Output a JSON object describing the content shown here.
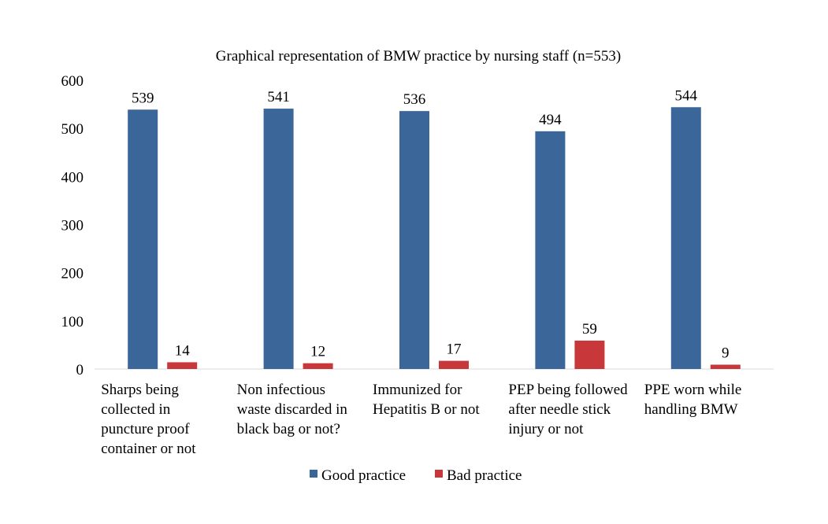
{
  "chart_data": {
    "type": "bar",
    "title": "Graphical representation  of BMW practice by nursing staff (n=553)",
    "categories": [
      [
        "Sharps being",
        "collected in",
        "puncture proof",
        "container or not"
      ],
      [
        "Non infectious",
        "waste discarded in",
        "black bag or not?"
      ],
      [
        "Immunized for",
        "Hepatitis B or not"
      ],
      [
        "PEP being followed",
        "after needle stick",
        "injury or not"
      ],
      [
        "PPE worn while",
        "handling BMW"
      ]
    ],
    "series": [
      {
        "name": "Good practice",
        "color": "#3B6699",
        "values": [
          539,
          541,
          536,
          494,
          544
        ]
      },
      {
        "name": "Bad practice",
        "color": "#C8373A",
        "values": [
          14,
          12,
          17,
          59,
          9
        ]
      }
    ],
    "ylim": [
      0,
      600
    ],
    "yticks": [
      0,
      100,
      200,
      300,
      400,
      500,
      600
    ],
    "grid": false,
    "legend_position": "bottom",
    "data_labels": true
  }
}
